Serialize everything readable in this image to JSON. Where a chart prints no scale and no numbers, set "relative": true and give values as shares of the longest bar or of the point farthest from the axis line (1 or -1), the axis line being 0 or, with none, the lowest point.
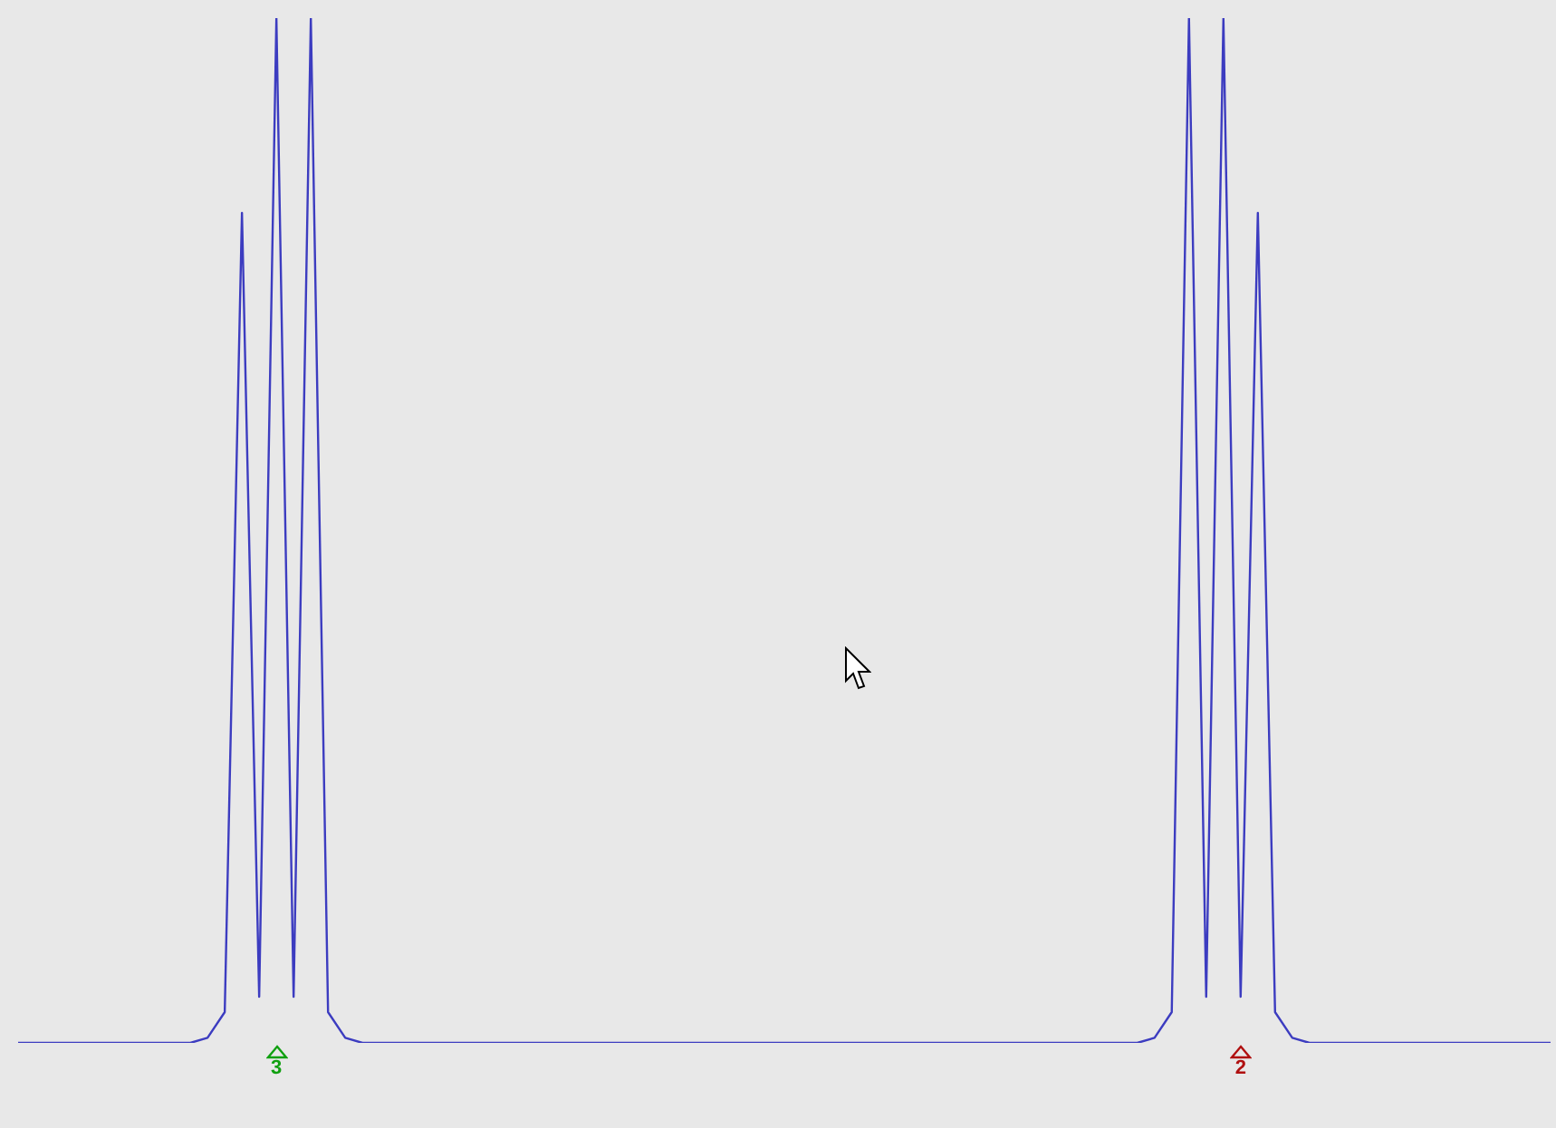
{
  "chart_data": {
    "type": "line",
    "relative": true,
    "legend": false,
    "tick_labels": false,
    "marker": "none",
    "line_style": "solid",
    "categories": [
      null,
      null,
      null,
      null,
      null,
      null,
      null,
      null,
      null,
      null,
      null,
      null,
      null,
      null,
      null,
      null,
      null,
      null,
      null,
      null,
      null,
      null,
      null,
      null,
      null,
      null,
      null,
      null,
      null,
      null,
      null,
      null,
      null,
      null,
      null,
      null,
      null,
      null,
      null,
      null,
      null,
      null,
      null,
      null,
      null,
      null,
      null,
      null,
      null,
      null,
      null,
      null,
      null,
      null,
      null,
      null,
      null,
      null,
      null,
      null,
      null,
      null,
      null,
      null,
      null,
      null,
      null,
      null,
      null,
      null,
      null,
      null,
      null,
      null,
      null,
      null,
      null,
      null,
      null,
      null,
      null,
      null,
      null,
      null,
      null,
      null,
      null,
      null,
      null,
      null
    ],
    "series": [
      {
        "color": "#3c3cc0",
        "values": [
          0,
          0,
          0,
          0,
          0,
          0,
          0,
          0,
          0,
          0,
          0,
          0.005,
          0.03,
          0.81,
          0.045,
          1,
          0.045,
          1,
          0.03,
          0.005,
          0,
          0,
          0,
          0,
          0,
          0,
          0,
          0,
          0,
          0,
          0,
          0,
          0,
          0,
          0,
          0,
          0,
          0,
          0,
          0,
          0,
          0,
          0,
          0,
          0,
          0,
          0,
          0,
          0,
          0,
          0,
          0,
          0,
          0,
          0,
          0,
          0,
          0,
          0,
          0,
          0,
          0,
          0,
          0,
          0,
          0,
          0.005,
          0.03,
          1,
          0.045,
          1,
          0.045,
          0.81,
          0.03,
          0.005,
          0,
          0,
          0,
          0,
          0,
          0,
          0,
          0,
          0,
          0,
          0,
          0,
          0,
          0,
          0
        ]
      }
    ],
    "annotations": [
      "3",
      "2"
    ]
  }
}
